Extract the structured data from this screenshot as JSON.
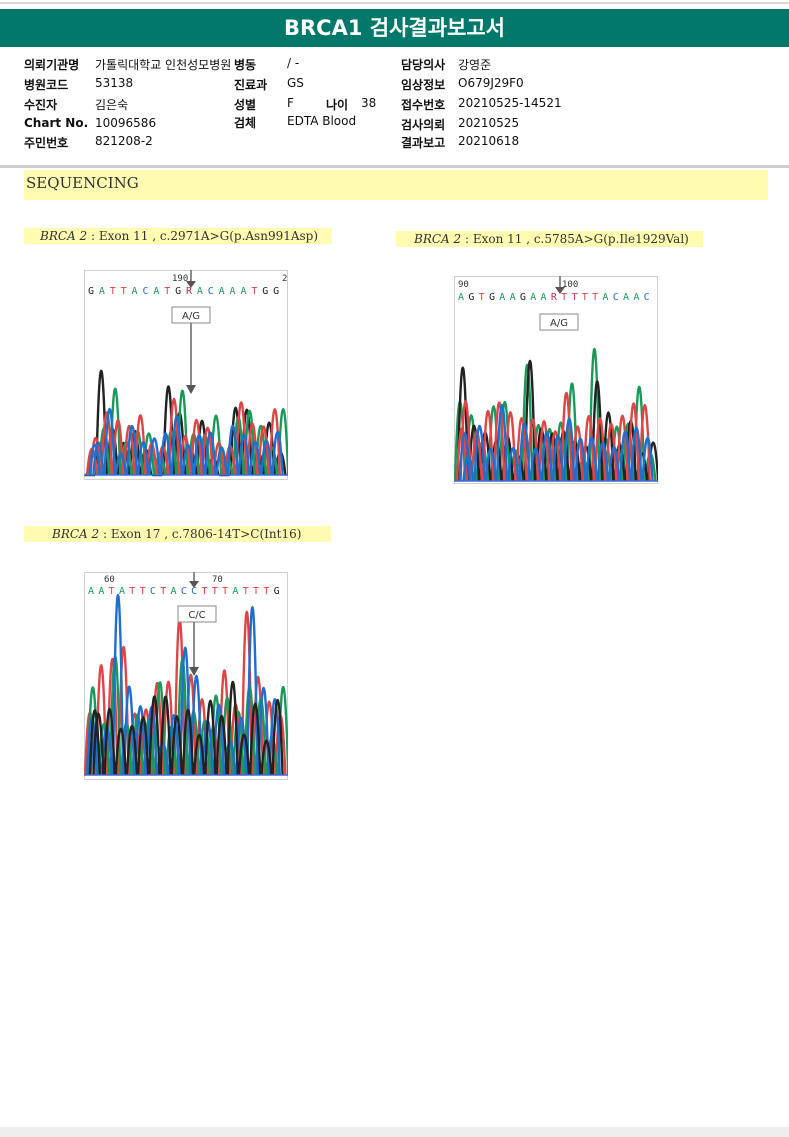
{
  "report": {
    "title": "BRCA1 검사결과보고서"
  },
  "patient": {
    "institution_label": "의뢰기관명",
    "institution_value": "가톨릭대학교 인천성모병원",
    "ward_label": "병동",
    "ward_value": "/ -",
    "doctor_label": "담당의사",
    "doctor_value": "강영준",
    "hospital_code_label": "병원코드",
    "hospital_code_value": "53138",
    "dept_label": "진료과",
    "dept_value": "GS",
    "clinical_label": "임상정보",
    "clinical_value": "O679J29F0",
    "recipient_label": "수진자",
    "recipient_value": "김은숙",
    "sex_label": "성별",
    "sex_value": "F",
    "age_label": "나이",
    "age_value": "38",
    "reception_label": "접수번호",
    "reception_value": "20210525-14521",
    "chart_label": "Chart No.",
    "chart_value": "10096586",
    "specimen_label": "검체",
    "specimen_value": "EDTA Blood",
    "request_label": "검사의뢰",
    "request_value": "20210525",
    "resident_label": "주민번호",
    "resident_value": "821208-2",
    "result_label": "결과보고",
    "result_value": "20210618"
  },
  "section": {
    "title": "SEQUENCING"
  },
  "variants": [
    {
      "gene": "BRCA 2",
      "desc": " : Exon 11 , c.2971A>G(p.Asn991Asp)",
      "sequence": "GATTACATGRACAAATGG",
      "tick_left": "190",
      "tick_right": "2",
      "call": "A/G"
    },
    {
      "gene": "BRCA 2",
      "desc": " : Exon 11 , c.5785A>G(p.Ile1929Val)",
      "sequence": "AGTGAAGAARTTTTACAAC",
      "tick_left": "90",
      "tick_right": "100",
      "call": "A/G"
    },
    {
      "gene": "BRCA 2",
      "desc": " : Exon 17 , c.7806-14T>C(Int16)",
      "sequence": "AATATTCTACCTTTATTTG",
      "tick_left": "60",
      "tick_right": "70",
      "call": "C/C"
    }
  ],
  "colors": {
    "header": "#00796b",
    "highlight": "#fffbb0",
    "A": "#1a9a5a",
    "C": "#1f6fd0",
    "G": "#222222",
    "T": "#e04545"
  }
}
